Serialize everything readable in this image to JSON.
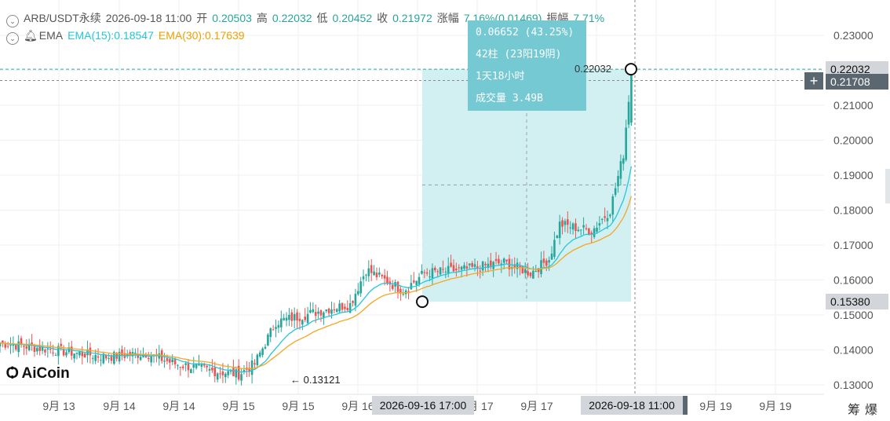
{
  "header": {
    "symbol": "ARB/USDT永续",
    "datetime": "2026-09-18 11:00",
    "open_label": "开",
    "open": "0.20503",
    "high_label": "高",
    "high": "0.22032",
    "low_label": "低",
    "low": "0.20452",
    "close_label": "收",
    "close": "0.21972",
    "change_label": "涨幅",
    "change": "7.16%(0.01469)",
    "amp_label": "振幅",
    "amp": "7.71%",
    "ema_label": "EMA",
    "ema15": "EMA(15):0.18547",
    "ema30": "EMA(30):0.17639"
  },
  "measure_tooltip": {
    "line1": "0.06652 (43.25%)",
    "line2": "42柱 (23阳19阴)",
    "line3": "1天18小时",
    "line4": "成交量 3.49B"
  },
  "labels": {
    "measure_end_price": "0.22032",
    "low_marker": "← 0.13121",
    "logo": "AiCoin",
    "start_time": "2026-09-16 17:00",
    "end_time": "2026-09-18 11:00",
    "right_buttons": [
      "筹",
      "爆"
    ]
  },
  "price_tags": {
    "high": "0.22032",
    "crosshair": "0.21708",
    "start": "0.15380"
  },
  "colors": {
    "up": "#26a69a",
    "down": "#ef5350",
    "ema15": "#26c6da",
    "ema30": "#f5a623",
    "measure_fill": "#cdeef1",
    "tooltip": "#74c9d3"
  },
  "axis": {
    "y_ticks": [
      "0.23000",
      "0.22000",
      "0.21000",
      "0.20000",
      "0.19000",
      "0.18000",
      "0.17000",
      "0.16000",
      "0.15000",
      "0.14000",
      "0.13000"
    ],
    "y_values": [
      0.23,
      0.22,
      0.21,
      0.2,
      0.19,
      0.18,
      0.17,
      0.16,
      0.15,
      0.14,
      0.13
    ],
    "x_labels": [
      "9月 13",
      "9月 14",
      "9月 14",
      "9月 15",
      "9月 15",
      "9月 16",
      "9月 17",
      "9月 17",
      "9月 18",
      "9月 19",
      "9月 19"
    ]
  },
  "chart_data": {
    "type": "candlestick",
    "ylim": [
      0.127,
      0.235
    ],
    "candle_groups": [
      {
        "region": "9月13-15",
        "start": 0.143,
        "end": 0.133,
        "count": 45
      },
      {
        "region": "9月15-16",
        "start": 0.133,
        "end": 0.152,
        "count": 22
      },
      {
        "region": "9月16-17",
        "start": 0.1538,
        "end": 0.163,
        "count": 30
      },
      {
        "region": "9月17-18",
        "start": 0.163,
        "end": 0.2197,
        "count": 12
      }
    ],
    "measure_start": 0.1538,
    "measure_end": 0.22032
  }
}
